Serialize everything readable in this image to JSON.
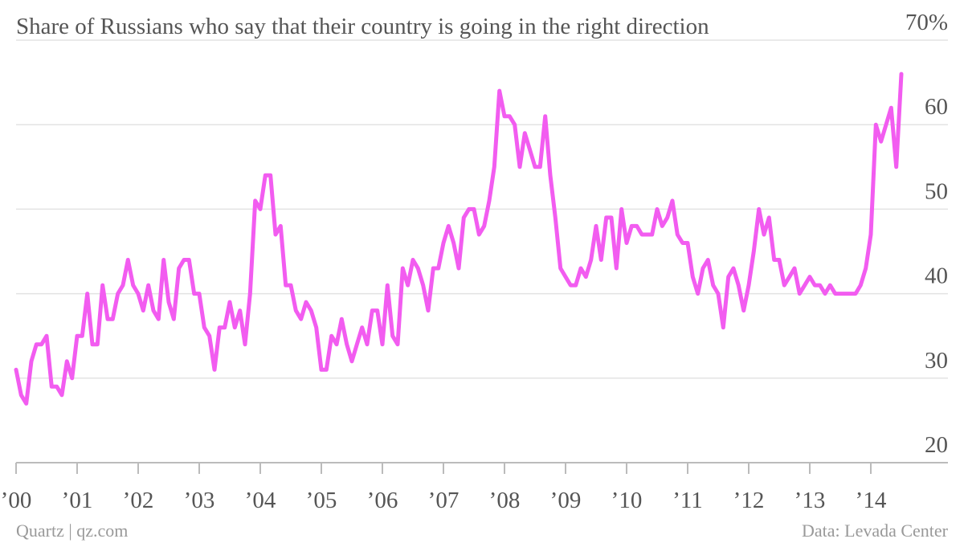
{
  "chart_data": {
    "type": "line",
    "title": "Share of Russians who say that their country is going in the right direction",
    "source": "Data: Levada Center",
    "credit": "Quartz | qz.com",
    "categories": [
      "’00",
      null,
      null,
      null,
      null,
      null,
      null,
      null,
      null,
      null,
      null,
      null,
      "’01",
      null,
      null,
      null,
      null,
      null,
      null,
      null,
      null,
      null,
      null,
      null,
      "’02",
      null,
      null,
      null,
      null,
      null,
      null,
      null,
      null,
      null,
      null,
      null,
      "’03",
      null,
      null,
      null,
      null,
      null,
      null,
      null,
      null,
      null,
      null,
      null,
      "’04",
      null,
      null,
      null,
      null,
      null,
      null,
      null,
      null,
      null,
      null,
      null,
      "’05",
      null,
      null,
      null,
      null,
      null,
      null,
      null,
      null,
      null,
      null,
      null,
      "’06",
      null,
      null,
      null,
      null,
      null,
      null,
      null,
      null,
      null,
      null,
      null,
      "’07",
      null,
      null,
      null,
      null,
      null,
      null,
      null,
      null,
      null,
      null,
      null,
      "’08",
      null,
      null,
      null,
      null,
      null,
      null,
      null,
      null,
      null,
      null,
      null,
      "’09",
      null,
      null,
      null,
      null,
      null,
      null,
      null,
      null,
      null,
      null,
      null,
      "’10",
      null,
      null,
      null,
      null,
      null,
      null,
      null,
      null,
      null,
      null,
      null,
      "’11",
      null,
      null,
      null,
      null,
      null,
      null,
      null,
      null,
      null,
      null,
      null,
      "’12",
      null,
      null,
      null,
      null,
      null,
      null,
      null,
      null,
      null,
      null,
      null,
      "’13",
      null,
      null,
      null,
      null,
      null,
      null,
      null,
      null,
      null,
      null,
      null,
      "’14",
      null,
      null,
      null,
      null,
      null,
      null
    ],
    "values": [
      31,
      28,
      27,
      32,
      34,
      34,
      35,
      29,
      29,
      28,
      32,
      30,
      35,
      35,
      40,
      34,
      34,
      41,
      37,
      37,
      40,
      41,
      44,
      41,
      40,
      38,
      41,
      38,
      37,
      44,
      39,
      37,
      43,
      44,
      44,
      40,
      40,
      36,
      35,
      31,
      36,
      36,
      39,
      36,
      38,
      34,
      40,
      51,
      50,
      54,
      54,
      47,
      48,
      41,
      41,
      38,
      37,
      39,
      38,
      36,
      31,
      31,
      35,
      34,
      37,
      34,
      32,
      34,
      36,
      34,
      38,
      38,
      34,
      41,
      35,
      34,
      43,
      41,
      44,
      43,
      41,
      38,
      43,
      43,
      46,
      48,
      46,
      43,
      49,
      50,
      50,
      47,
      48,
      51,
      55,
      64,
      61,
      61,
      60,
      55,
      59,
      57,
      55,
      55,
      61,
      54,
      49,
      43,
      42,
      41,
      41,
      43,
      42,
      44,
      48,
      44,
      49,
      49,
      43,
      50,
      46,
      48,
      48,
      47,
      47,
      47,
      50,
      48,
      49,
      51,
      47,
      46,
      46,
      42,
      40,
      43,
      44,
      41,
      40,
      36,
      42,
      43,
      41,
      38,
      41,
      45,
      50,
      47,
      49,
      44,
      44,
      41,
      42,
      43,
      40,
      41,
      42,
      41,
      41,
      40,
      41,
      40,
      40,
      40,
      40,
      40,
      41,
      43,
      47,
      60,
      58,
      60,
      62,
      55,
      66
    ],
    "color": "#f25cf0",
    "ylim": [
      20,
      70
    ],
    "yticks": [
      20,
      30,
      40,
      50,
      60,
      {
        "value": 70,
        "label": "70%"
      }
    ],
    "grid": true
  }
}
